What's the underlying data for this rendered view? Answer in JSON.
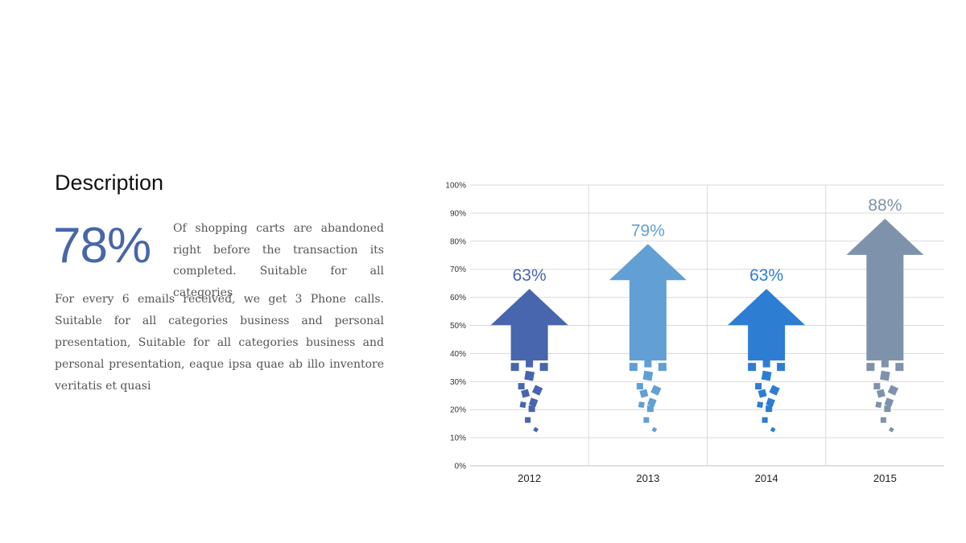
{
  "description": {
    "heading": "Description",
    "highlight_value": "78%",
    "highlight_text": "Of shopping carts are abandoned right before the transaction its completed. Suitable for all categories",
    "body": "For every 6 emails received, we get 3 Phone calls. Suitable for all categories business and personal presentation, Suitable for all categories business and personal presentation, eaque ipsa quae ab illo inventore veritatis et quasi"
  },
  "chart_data": {
    "type": "bar",
    "categories": [
      "2012",
      "2013",
      "2014",
      "2015"
    ],
    "values": [
      63,
      79,
      63,
      88
    ],
    "data_labels": [
      "63%",
      "79%",
      "63%",
      "88%"
    ],
    "colors": [
      "#4866ad",
      "#629fd4",
      "#2d7dd2",
      "#7f92ab"
    ],
    "ylim": [
      0,
      100
    ],
    "yticks": [
      "0%",
      "10%",
      "20%",
      "30%",
      "40%",
      "50%",
      "60%",
      "70%",
      "80%",
      "90%",
      "100%"
    ],
    "grid": true,
    "legend": "none",
    "title": "",
    "xlabel": "",
    "ylabel": ""
  }
}
